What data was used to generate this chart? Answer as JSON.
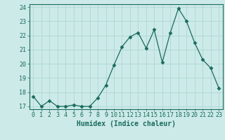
{
  "x": [
    0,
    1,
    2,
    3,
    4,
    5,
    6,
    7,
    8,
    9,
    10,
    11,
    12,
    13,
    14,
    15,
    16,
    17,
    18,
    19,
    20,
    21,
    22,
    23
  ],
  "y": [
    17.7,
    17.0,
    17.4,
    17.0,
    17.0,
    17.1,
    17.0,
    17.0,
    17.6,
    18.5,
    19.9,
    21.2,
    21.9,
    22.2,
    21.1,
    22.4,
    20.1,
    22.2,
    23.9,
    23.0,
    21.5,
    20.3,
    19.7,
    18.3
  ],
  "line_color": "#1a6b5e",
  "marker": "D",
  "marker_size": 2.5,
  "bg_color": "#cceae7",
  "grid_color": "#b0d8d4",
  "xlabel": "Humidex (Indice chaleur)",
  "ylim": [
    16.8,
    24.2
  ],
  "xlim": [
    -0.5,
    23.5
  ],
  "yticks": [
    17,
    18,
    19,
    20,
    21,
    22,
    23,
    24
  ],
  "xticks": [
    0,
    1,
    2,
    3,
    4,
    5,
    6,
    7,
    8,
    9,
    10,
    11,
    12,
    13,
    14,
    15,
    16,
    17,
    18,
    19,
    20,
    21,
    22,
    23
  ],
  "xtick_labels": [
    "0",
    "1",
    "2",
    "3",
    "4",
    "5",
    "6",
    "7",
    "8",
    "9",
    "10",
    "11",
    "12",
    "13",
    "14",
    "15",
    "16",
    "17",
    "18",
    "19",
    "20",
    "21",
    "22",
    "23"
  ],
  "tick_color": "#1a6b5e",
  "xlabel_fontsize": 7,
  "tick_fontsize": 6,
  "spine_color": "#1a6b5e"
}
